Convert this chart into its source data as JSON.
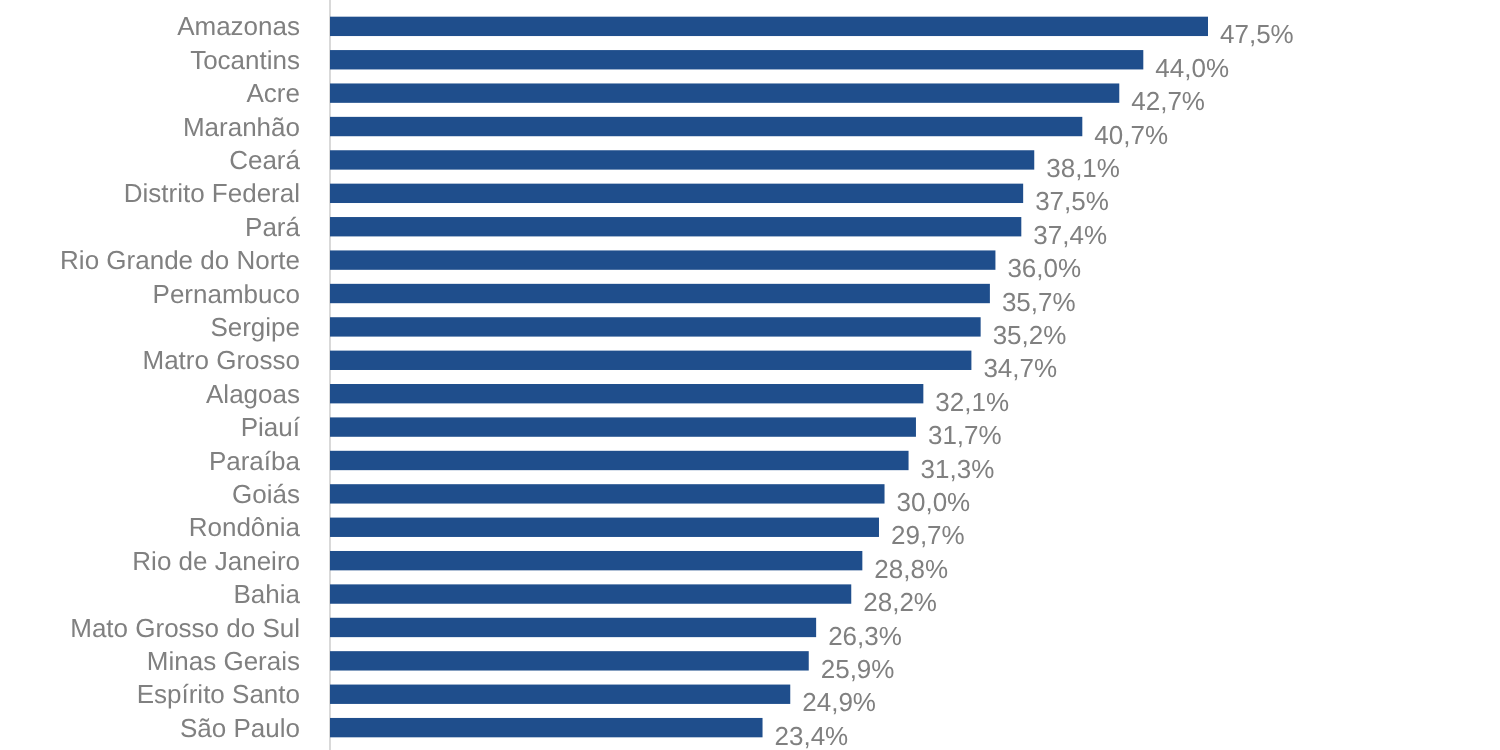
{
  "chart_data": {
    "type": "bar",
    "orientation": "horizontal",
    "value_labels": [
      "47,5%",
      "44,0%",
      "42,7%",
      "40,7%",
      "38,1%",
      "37,5%",
      "37,4%",
      "36,0%",
      "35,7%",
      "35,2%",
      "34,7%",
      "32,1%",
      "31,7%",
      "31,3%",
      "30,0%",
      "29,7%",
      "28,8%",
      "28,2%",
      "26,3%",
      "25,9%",
      "24,9%",
      "23,4%"
    ],
    "categories": [
      "Amazonas",
      "Tocantins",
      "Acre",
      "Maranhão",
      "Ceará",
      "Distrito Federal",
      "Pará",
      "Rio Grande do Norte",
      "Pernambuco",
      "Sergipe",
      "Matro Grosso",
      "Alagoas",
      "Piauí",
      "Paraíba",
      "Goiás",
      "Rondônia",
      "Rio de Janeiro",
      "Bahia",
      "Mato Grosso do Sul",
      "Minas Gerais",
      "Espírito Santo",
      "São Paulo"
    ],
    "values": [
      47.5,
      44.0,
      42.7,
      40.7,
      38.1,
      37.5,
      37.4,
      36.0,
      35.7,
      35.2,
      34.7,
      32.1,
      31.7,
      31.3,
      30.0,
      29.7,
      28.8,
      28.2,
      26.3,
      25.9,
      24.9,
      23.4
    ],
    "color": "#1f4e8c"
  }
}
